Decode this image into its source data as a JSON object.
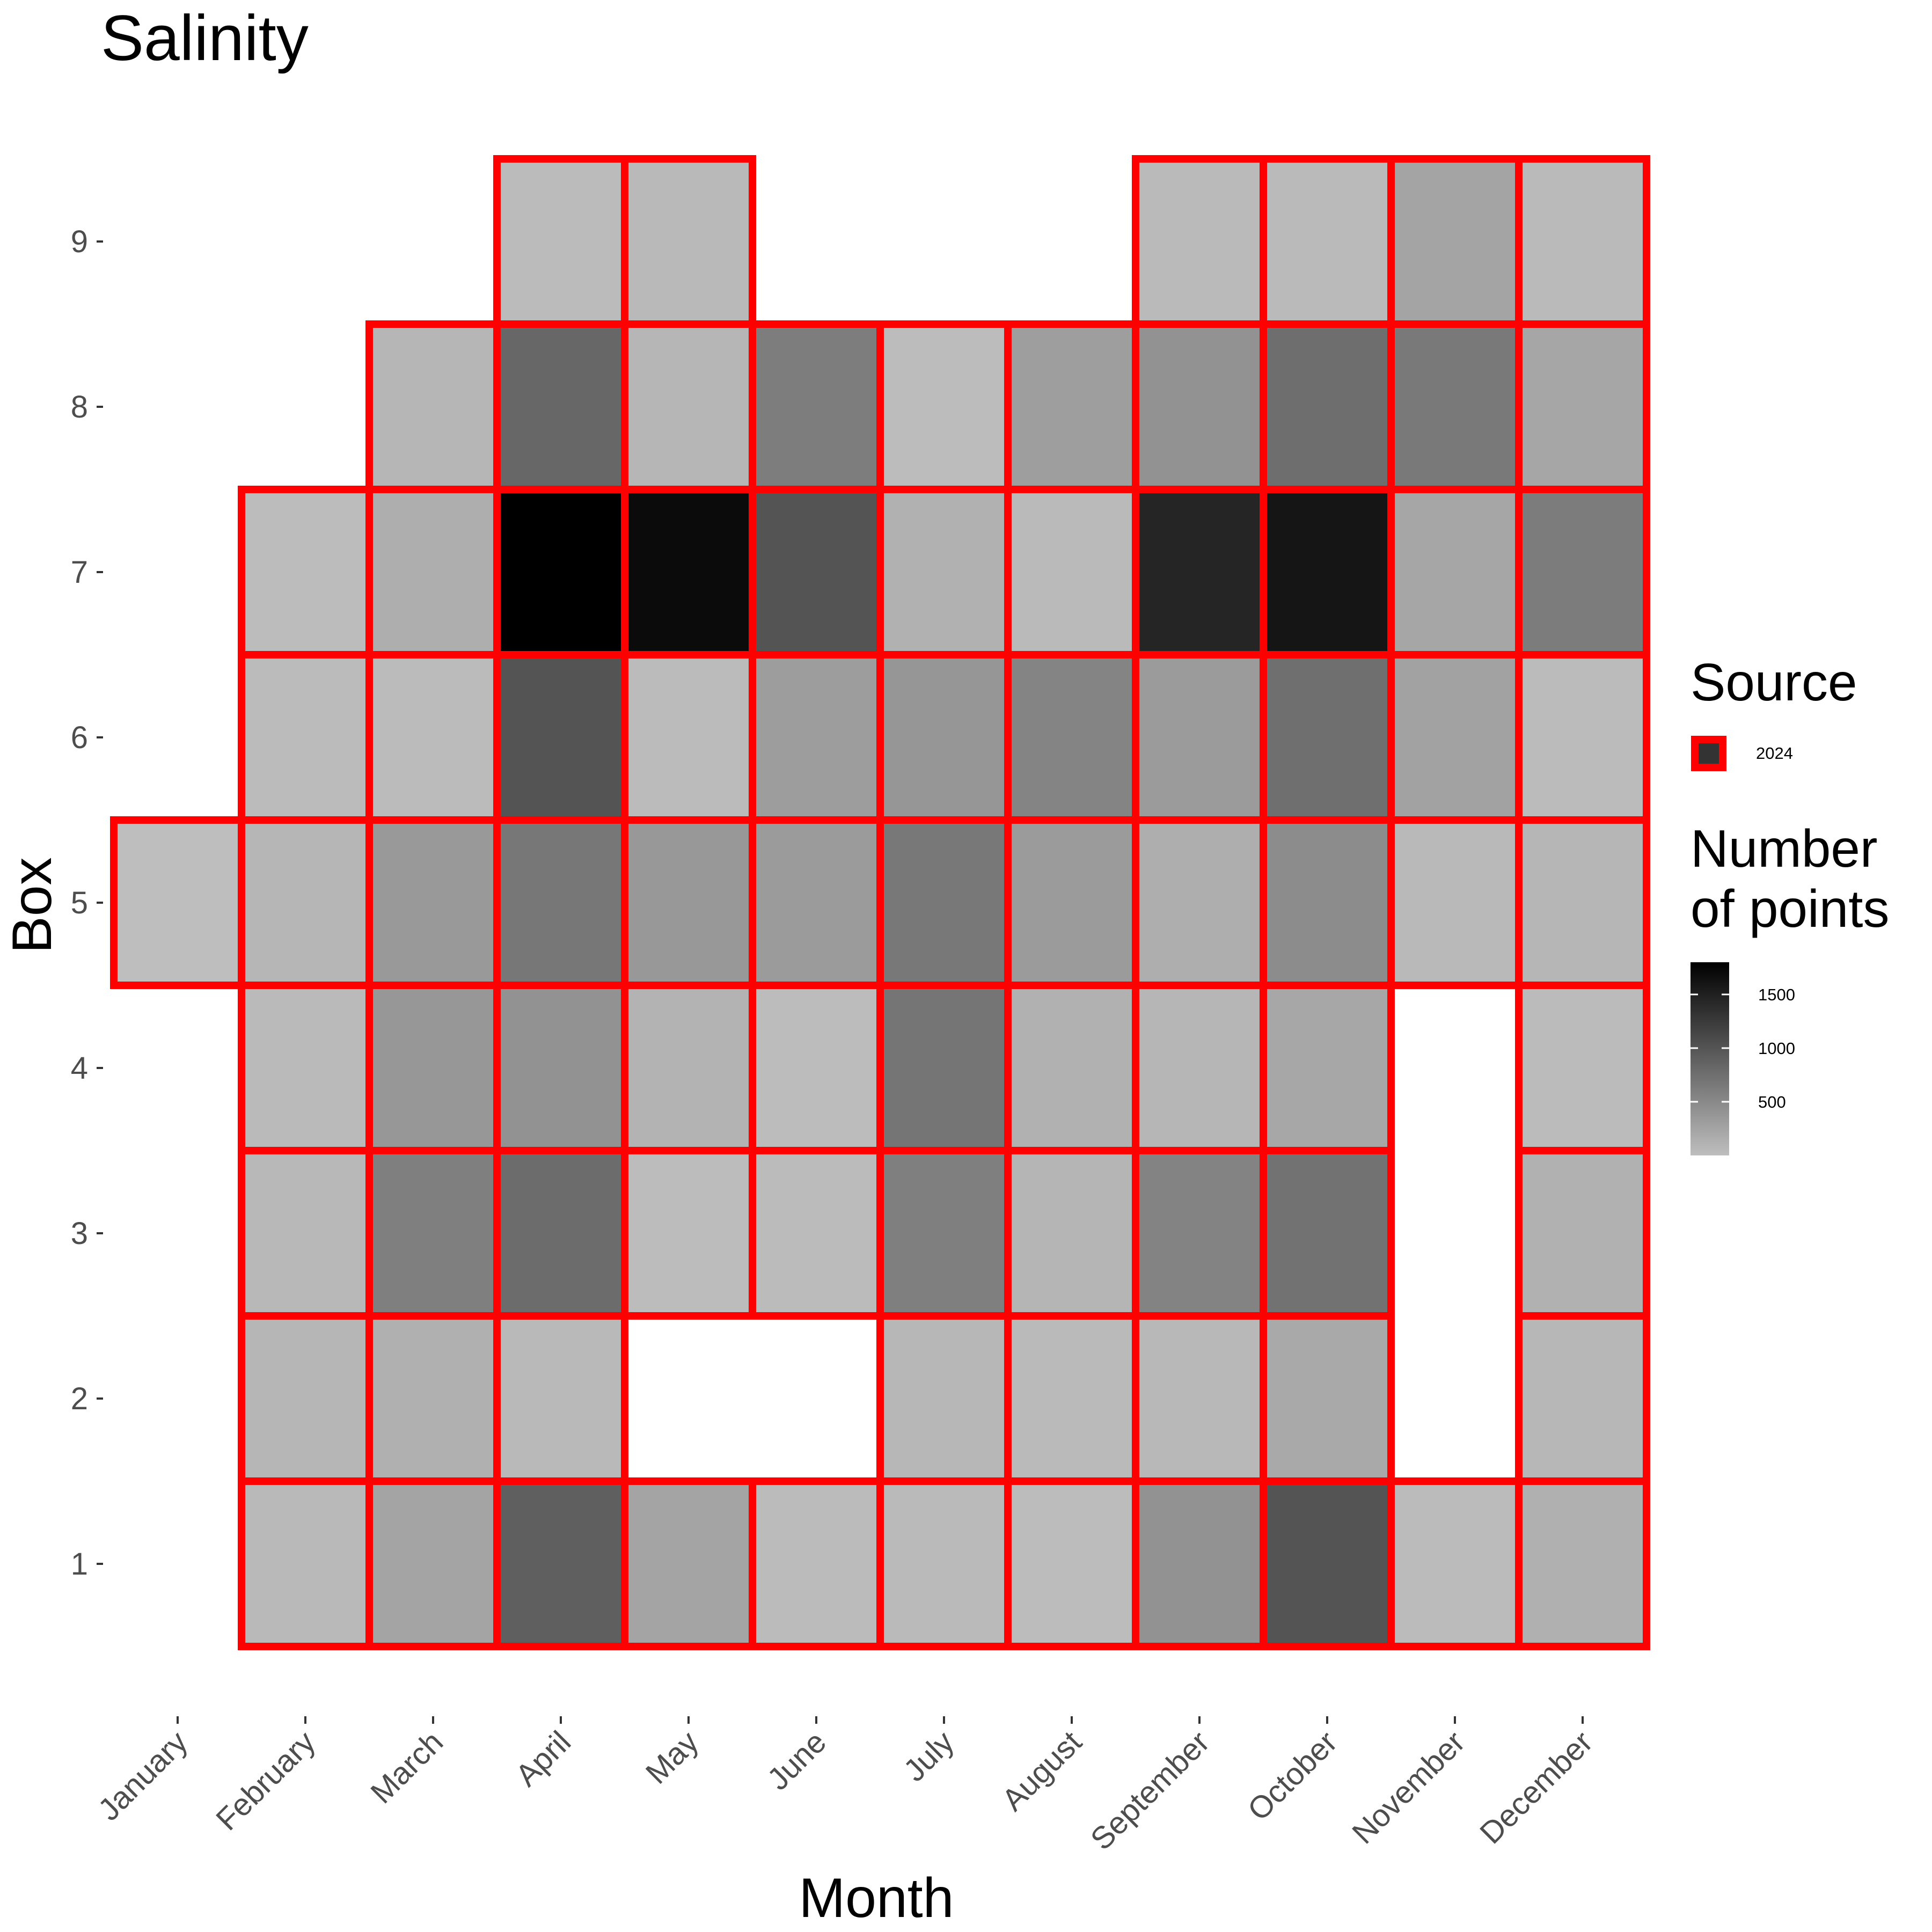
{
  "chart_data": {
    "type": "heatmap",
    "title": "Salinity",
    "xlabel": "Month",
    "ylabel": "Box",
    "x_categories": [
      "January",
      "February",
      "March",
      "April",
      "May",
      "June",
      "July",
      "August",
      "September",
      "October",
      "November",
      "December"
    ],
    "y_categories": [
      "1",
      "2",
      "3",
      "4",
      "5",
      "6",
      "7",
      "8",
      "9"
    ],
    "color_scale": {
      "title": "Number\n of points",
      "min": 0,
      "max": 1800,
      "low_color": "#bebebe",
      "high_color": "#000000",
      "ticks": [
        500,
        1000,
        1500
      ]
    },
    "source_legend": {
      "title": "Source",
      "entries": [
        "2024"
      ],
      "outline_color": "#ff0000",
      "fill_color": "#333333"
    },
    "grid": false,
    "legend_position": "right",
    "cells": [
      {
        "month": "January",
        "box": 5,
        "value": 0
      },
      {
        "month": "February",
        "box": 1,
        "value": 50
      },
      {
        "month": "February",
        "box": 2,
        "value": 80
      },
      {
        "month": "February",
        "box": 3,
        "value": 60
      },
      {
        "month": "February",
        "box": 4,
        "value": 40
      },
      {
        "month": "February",
        "box": 5,
        "value": 80
      },
      {
        "month": "February",
        "box": 6,
        "value": 30
      },
      {
        "month": "February",
        "box": 7,
        "value": 20
      },
      {
        "month": "March",
        "box": 1,
        "value": 250
      },
      {
        "month": "March",
        "box": 2,
        "value": 130
      },
      {
        "month": "March",
        "box": 3,
        "value": 600
      },
      {
        "month": "March",
        "box": 4,
        "value": 370
      },
      {
        "month": "March",
        "box": 5,
        "value": 350
      },
      {
        "month": "March",
        "box": 6,
        "value": 30
      },
      {
        "month": "March",
        "box": 7,
        "value": 150
      },
      {
        "month": "March",
        "box": 8,
        "value": 80
      },
      {
        "month": "April",
        "box": 1,
        "value": 900
      },
      {
        "month": "April",
        "box": 2,
        "value": 50
      },
      {
        "month": "April",
        "box": 3,
        "value": 780
      },
      {
        "month": "April",
        "box": 4,
        "value": 420
      },
      {
        "month": "April",
        "box": 5,
        "value": 670
      },
      {
        "month": "April",
        "box": 6,
        "value": 1000
      },
      {
        "month": "April",
        "box": 7,
        "value": 1800
      },
      {
        "month": "April",
        "box": 8,
        "value": 820
      },
      {
        "month": "April",
        "box": 9,
        "value": 30
      },
      {
        "month": "May",
        "box": 1,
        "value": 250
      },
      {
        "month": "May",
        "box": 3,
        "value": 20
      },
      {
        "month": "May",
        "box": 4,
        "value": 100
      },
      {
        "month": "May",
        "box": 5,
        "value": 360
      },
      {
        "month": "May",
        "box": 6,
        "value": 30
      },
      {
        "month": "May",
        "box": 7,
        "value": 1700
      },
      {
        "month": "May",
        "box": 8,
        "value": 80
      },
      {
        "month": "May",
        "box": 9,
        "value": 50
      },
      {
        "month": "June",
        "box": 1,
        "value": 30
      },
      {
        "month": "June",
        "box": 3,
        "value": 30
      },
      {
        "month": "June",
        "box": 4,
        "value": 20
      },
      {
        "month": "June",
        "box": 5,
        "value": 330
      },
      {
        "month": "June",
        "box": 6,
        "value": 310
      },
      {
        "month": "June",
        "box": 7,
        "value": 1000
      },
      {
        "month": "June",
        "box": 8,
        "value": 620
      },
      {
        "month": "July",
        "box": 1,
        "value": 40
      },
      {
        "month": "July",
        "box": 2,
        "value": 70
      },
      {
        "month": "July",
        "box": 3,
        "value": 600
      },
      {
        "month": "July",
        "box": 4,
        "value": 690
      },
      {
        "month": "July",
        "box": 5,
        "value": 660
      },
      {
        "month": "July",
        "box": 6,
        "value": 380
      },
      {
        "month": "July",
        "box": 7,
        "value": 120
      },
      {
        "month": "July",
        "box": 8,
        "value": 20
      },
      {
        "month": "August",
        "box": 1,
        "value": 20
      },
      {
        "month": "August",
        "box": 2,
        "value": 40
      },
      {
        "month": "August",
        "box": 3,
        "value": 90
      },
      {
        "month": "August",
        "box": 4,
        "value": 120
      },
      {
        "month": "August",
        "box": 5,
        "value": 330
      },
      {
        "month": "August",
        "box": 6,
        "value": 550
      },
      {
        "month": "August",
        "box": 7,
        "value": 40
      },
      {
        "month": "August",
        "box": 8,
        "value": 300
      },
      {
        "month": "September",
        "box": 1,
        "value": 420
      },
      {
        "month": "September",
        "box": 2,
        "value": 60
      },
      {
        "month": "September",
        "box": 3,
        "value": 560
      },
      {
        "month": "September",
        "box": 4,
        "value": 80
      },
      {
        "month": "September",
        "box": 5,
        "value": 150
      },
      {
        "month": "September",
        "box": 6,
        "value": 330
      },
      {
        "month": "September",
        "box": 7,
        "value": 1450
      },
      {
        "month": "September",
        "box": 8,
        "value": 420
      },
      {
        "month": "September",
        "box": 9,
        "value": 40
      },
      {
        "month": "October",
        "box": 1,
        "value": 1000
      },
      {
        "month": "October",
        "box": 2,
        "value": 200
      },
      {
        "month": "October",
        "box": 3,
        "value": 720
      },
      {
        "month": "October",
        "box": 4,
        "value": 220
      },
      {
        "month": "October",
        "box": 5,
        "value": 470
      },
      {
        "month": "October",
        "box": 6,
        "value": 750
      },
      {
        "month": "October",
        "box": 7,
        "value": 1600
      },
      {
        "month": "October",
        "box": 8,
        "value": 760
      },
      {
        "month": "October",
        "box": 9,
        "value": 40
      },
      {
        "month": "November",
        "box": 1,
        "value": 30
      },
      {
        "month": "November",
        "box": 5,
        "value": 50
      },
      {
        "month": "November",
        "box": 6,
        "value": 270
      },
      {
        "month": "November",
        "box": 7,
        "value": 230
      },
      {
        "month": "November",
        "box": 8,
        "value": 650
      },
      {
        "month": "November",
        "box": 9,
        "value": 250
      },
      {
        "month": "December",
        "box": 1,
        "value": 130
      },
      {
        "month": "December",
        "box": 2,
        "value": 70
      },
      {
        "month": "December",
        "box": 3,
        "value": 120
      },
      {
        "month": "December",
        "box": 4,
        "value": 30
      },
      {
        "month": "December",
        "box": 5,
        "value": 80
      },
      {
        "month": "December",
        "box": 6,
        "value": 30
      },
      {
        "month": "December",
        "box": 7,
        "value": 630
      },
      {
        "month": "December",
        "box": 8,
        "value": 230
      },
      {
        "month": "December",
        "box": 9,
        "value": 40
      }
    ]
  }
}
